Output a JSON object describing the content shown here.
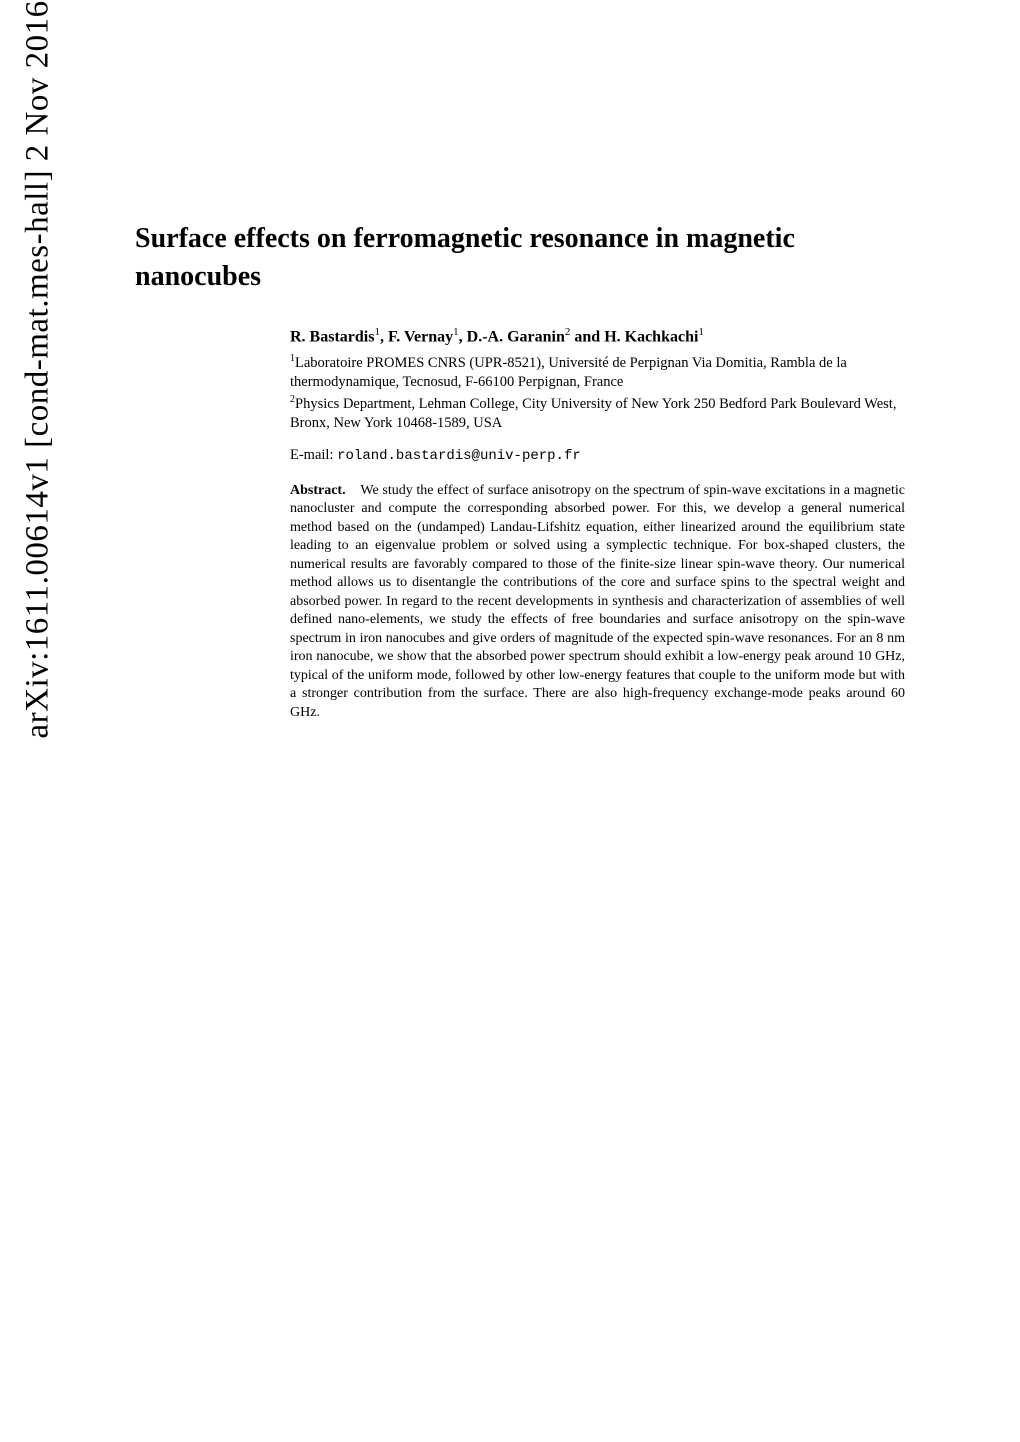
{
  "arxiv_stamp": "arXiv:1611.00614v1  [cond-mat.mes-hall]  2 Nov 2016",
  "title": "Surface effects on ferromagnetic resonance in magnetic nanocubes",
  "authors_html": "R. Bastardis<sup>1</sup>, F. Vernay<sup>1</sup>, D.-A. Garanin<sup>2</sup> and H. Kachkachi<sup>1</sup>",
  "affiliations": [
    "<sup>1</sup>Laboratoire PROMES CNRS (UPR-8521), Université de Perpignan Via Domitia, Rambla de la thermodynamique, Tecnosud, F-66100 Perpignan, France",
    "<sup>2</sup>Physics Department, Lehman College, City University of New York 250 Bedford Park Boulevard West, Bronx, New York 10468-1589, USA"
  ],
  "email_label": "E-mail: ",
  "email": "roland.bastardis@univ-perp.fr",
  "abstract_label": "Abstract.",
  "abstract_body": "We study the effect of surface anisotropy on the spectrum of spin-wave excitations in a magnetic nanocluster and compute the corresponding absorbed power. For this, we develop a general numerical method based on the (undamped) Landau-Lifshitz equation, either linearized around the equilibrium state leading to an eigenvalue problem or solved using a symplectic technique. For box-shaped clusters, the numerical results are favorably compared to those of the finite-size linear spin-wave theory. Our numerical method allows us to disentangle the contributions of the core and surface spins to the spectral weight and absorbed power. In regard to the recent developments in synthesis and characterization of assemblies of well defined nano-elements, we study the effects of free boundaries and surface anisotropy on the spin-wave spectrum in iron nanocubes and give orders of magnitude of the expected spin-wave resonances. For an 8 nm iron nanocube, we show that the absorbed power spectrum should exhibit a low-energy peak around 10 GHz, typical of the uniform mode, followed by other low-energy features that couple to the uniform mode but with a stronger contribution from the surface. There are also high-frequency exchange-mode peaks around 60 GHz."
}
